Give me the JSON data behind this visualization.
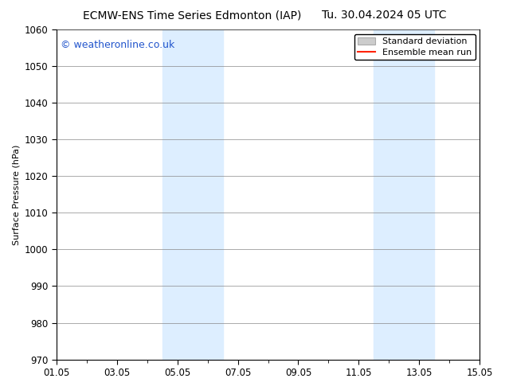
{
  "title_left": "ECMW-ENS Time Series Edmonton (IAP)",
  "title_right": "Tu. 30.04.2024 05 UTC",
  "ylabel": "Surface Pressure (hPa)",
  "xlabel": "",
  "ylim": [
    970,
    1060
  ],
  "yticks": [
    970,
    980,
    990,
    1000,
    1010,
    1020,
    1030,
    1040,
    1050,
    1060
  ],
  "x_start": 0,
  "x_end": 14,
  "xtick_labels": [
    "01.05",
    "03.05",
    "05.05",
    "07.05",
    "09.05",
    "11.05",
    "13.05",
    "15.05"
  ],
  "xtick_positions": [
    0,
    2,
    4,
    6,
    8,
    10,
    12,
    14
  ],
  "shaded_regions": [
    {
      "start": 3.5,
      "end": 5.5
    },
    {
      "start": 10.5,
      "end": 12.5
    }
  ],
  "shaded_color": "#ddeeff",
  "watermark_text": "© weatheronline.co.uk",
  "watermark_color": "#2255cc",
  "watermark_fontsize": 9,
  "legend_std_label": "Standard deviation",
  "legend_mean_label": "Ensemble mean run",
  "legend_std_facecolor": "#cccccc",
  "legend_std_edgecolor": "#aaaaaa",
  "legend_mean_color": "#ff2200",
  "bg_color": "#ffffff",
  "grid_color": "#888888",
  "title_fontsize": 10,
  "axis_label_fontsize": 8,
  "tick_fontsize": 8.5,
  "legend_fontsize": 8
}
